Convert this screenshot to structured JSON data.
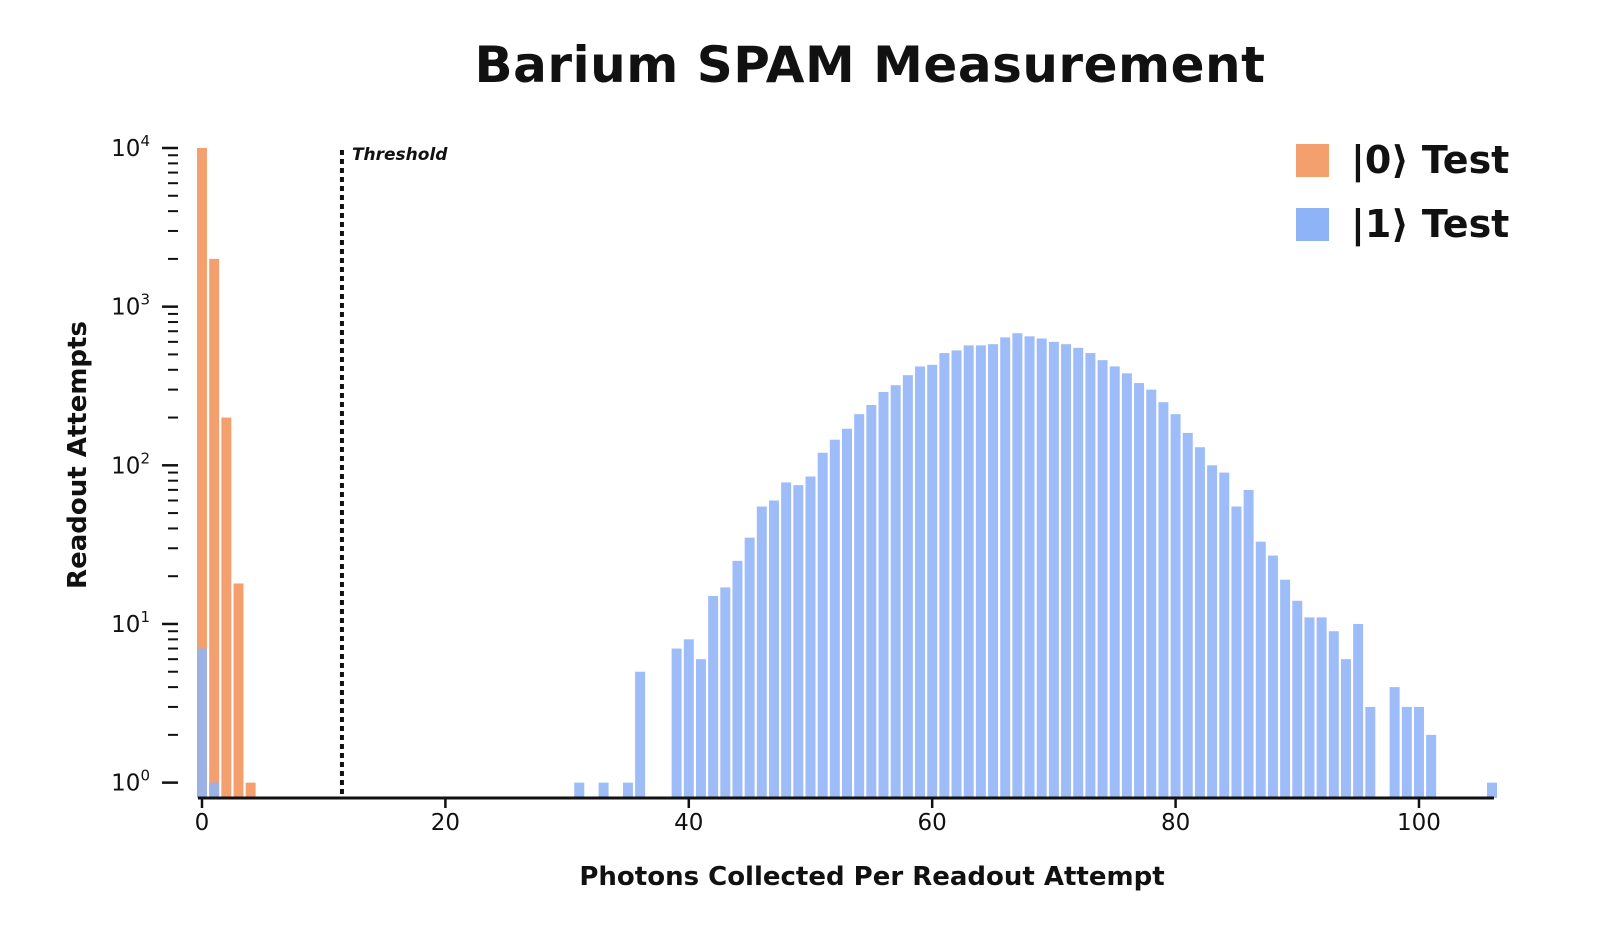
{
  "chart_data": {
    "type": "bar",
    "title": "Barium SPAM Measurement",
    "xlabel": "Photons Collected Per Readout Attempt",
    "ylabel": "Readout Attempts",
    "yscale": "log",
    "xlim": [
      0,
      106
    ],
    "ylim": [
      0.8,
      10000
    ],
    "xticks": [
      0,
      20,
      40,
      60,
      80,
      100
    ],
    "yticks": [
      {
        "base": "10",
        "exp": "0",
        "value": 1
      },
      {
        "base": "10",
        "exp": "1",
        "value": 10
      },
      {
        "base": "10",
        "exp": "2",
        "value": 100
      },
      {
        "base": "10",
        "exp": "3",
        "value": 1000
      },
      {
        "base": "10",
        "exp": "4",
        "value": 10000
      }
    ],
    "threshold": {
      "label": "Threshold",
      "x": 11.5
    },
    "legend_position": "top-right",
    "grid": false,
    "series": [
      {
        "name": "|0⟩ Test",
        "color": "#f4a06e",
        "x": [
          0,
          1,
          2,
          3,
          4
        ],
        "values": [
          10000,
          2000,
          200,
          18,
          1
        ]
      },
      {
        "name": "|1⟩ Test",
        "color": "#8fb3f7",
        "x": [
          0,
          1,
          31,
          33,
          35,
          36,
          39,
          40,
          41,
          42,
          43,
          44,
          45,
          46,
          47,
          48,
          49,
          50,
          51,
          52,
          53,
          54,
          55,
          56,
          57,
          58,
          59,
          60,
          61,
          62,
          63,
          64,
          65,
          66,
          67,
          68,
          69,
          70,
          71,
          72,
          73,
          74,
          75,
          76,
          77,
          78,
          79,
          80,
          81,
          82,
          83,
          84,
          85,
          86,
          87,
          88,
          89,
          90,
          91,
          92,
          93,
          94,
          95,
          96,
          98,
          99,
          100,
          101,
          106
        ],
        "values": [
          7,
          1,
          1,
          1,
          1,
          5,
          7,
          8,
          6,
          15,
          17,
          25,
          35,
          55,
          60,
          78,
          75,
          85,
          120,
          145,
          170,
          210,
          240,
          290,
          320,
          370,
          420,
          430,
          510,
          530,
          570,
          570,
          580,
          640,
          680,
          650,
          630,
          600,
          580,
          550,
          510,
          460,
          420,
          380,
          330,
          300,
          250,
          210,
          160,
          130,
          100,
          90,
          55,
          70,
          33,
          27,
          19,
          14,
          11,
          11,
          9,
          6,
          10,
          3,
          4,
          3,
          3,
          2,
          1
        ]
      }
    ]
  }
}
